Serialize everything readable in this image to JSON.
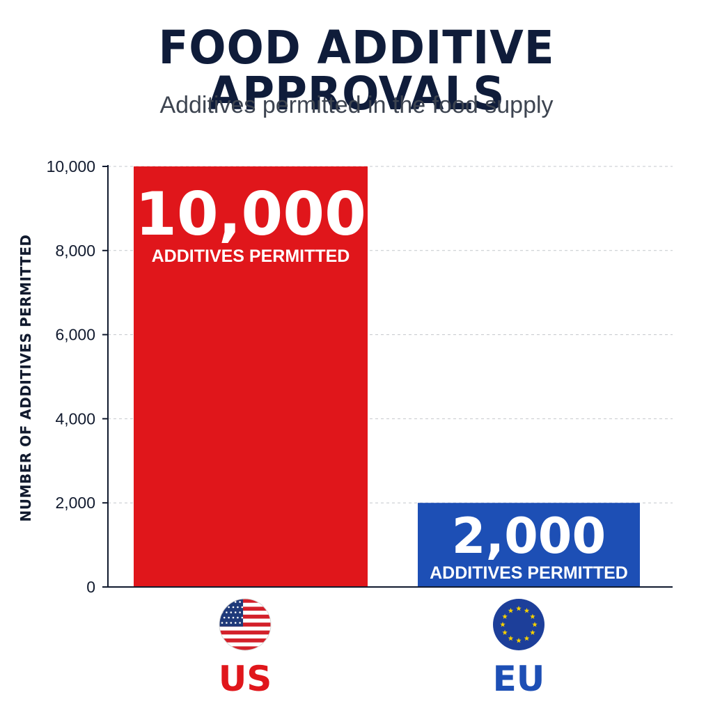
{
  "chart_data": {
    "type": "bar",
    "title": "FOOD ADDITIVE APPROVALS",
    "subtitle": "Additives permitted in the food supply",
    "ylabel": "NUMBER OF ADDITIVES PERMITTED",
    "xlabel": "",
    "ylim": [
      0,
      10000
    ],
    "yticks": [
      0,
      2000,
      4000,
      6000,
      8000,
      10000
    ],
    "ytick_labels": [
      "0",
      "2,000",
      "4,000",
      "6,000",
      "8,000",
      "10,000"
    ],
    "grid": true,
    "categories": [
      "US",
      "EU"
    ],
    "values": [
      10000,
      2000
    ],
    "value_labels": [
      "10,000",
      "2,000"
    ],
    "bar_sublabel": "ADDITIVES PERMITTED",
    "colors": [
      "#e0161b",
      "#1d4fb5"
    ],
    "label_colors": [
      "#e0161b",
      "#1d4fb5"
    ],
    "flag_icons": [
      "us-flag-icon",
      "eu-flag-icon"
    ]
  }
}
